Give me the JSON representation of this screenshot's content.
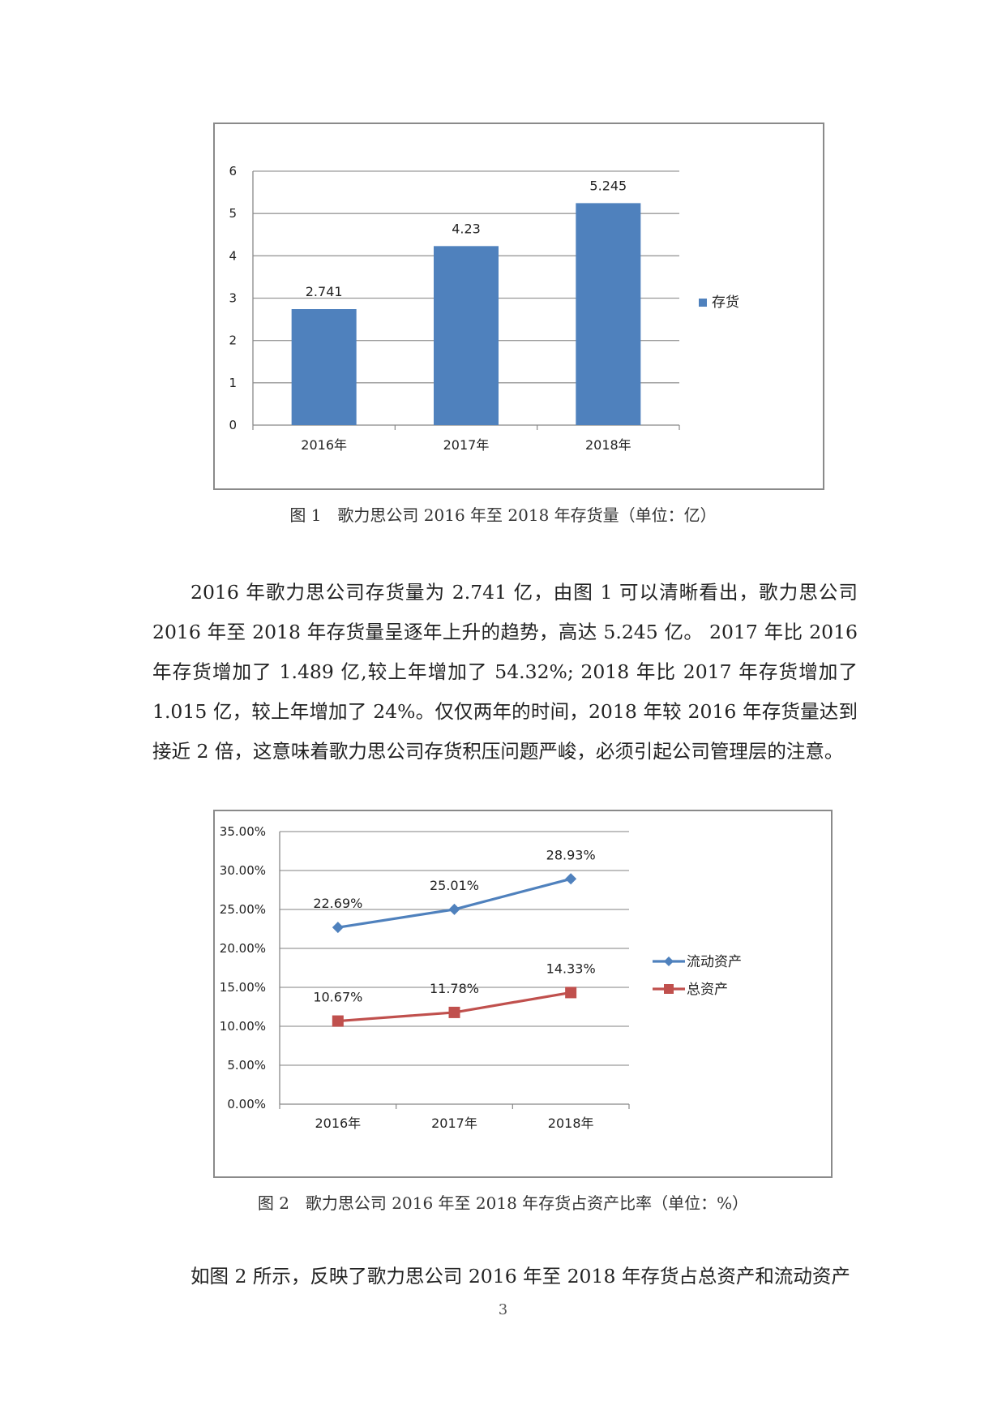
{
  "chart_data": [
    {
      "type": "bar",
      "categories": [
        "2016年",
        "2017年",
        "2018年"
      ],
      "series": [
        {
          "name": "存货",
          "values": [
            2.741,
            4.23,
            5.245
          ],
          "color": "#4F81BD"
        }
      ],
      "data_labels": [
        "2.741",
        "4.23",
        "5.245"
      ],
      "y_ticks": [
        "0",
        "1",
        "2",
        "3",
        "4",
        "5",
        "6"
      ],
      "ylim": [
        0,
        6
      ],
      "grid": true,
      "legend": "right"
    },
    {
      "type": "line",
      "categories": [
        "2016年",
        "2017年",
        "2018年"
      ],
      "series": [
        {
          "name": "流动资产",
          "values": [
            22.69,
            25.01,
            28.93
          ],
          "labels": [
            "22.69%",
            "25.01%",
            "28.93%"
          ],
          "color": "#4F81BD",
          "marker": "diamond"
        },
        {
          "name": "总资产",
          "values": [
            10.67,
            11.78,
            14.33
          ],
          "labels": [
            "10.67%",
            "11.78%",
            "14.33%"
          ],
          "color": "#C0504D",
          "marker": "square"
        }
      ],
      "y_ticks": [
        "0.00%",
        "5.00%",
        "10.00%",
        "15.00%",
        "20.00%",
        "25.00%",
        "30.00%",
        "35.00%"
      ],
      "ylim": [
        0,
        35
      ],
      "grid": true,
      "legend": "right"
    }
  ],
  "captions": {
    "fig1": "图 1　歌力思公司 2016 年至 2018 年存货量（单位：亿）",
    "fig2": "图 2　歌力思公司 2016 年至 2018 年存货占资产比率（单位：%）"
  },
  "paragraphs": {
    "p1": "2016 年歌力思公司存货量为 2.741 亿，由图 1 可以清晰看出，歌力思公司 2016 年至 2018 年存货量呈逐年上升的趋势，高达 5.245 亿。 2017 年比 2016 年存货增加了 1.489 亿,较上年增加了 54.32%; 2018 年比 2017 年存货增加了 1.015 亿，较上年增加了 24%。仅仅两年的时间，2018 年较 2016 年存货量达到接近 2 倍，这意味着歌力思公司存货积压问题严峻，必须引起公司管理层的注意。",
    "p2": "如图 2 所示，反映了歌力思公司 2016 年至 2018 年存货占总资产和流动资产"
  },
  "page_number": "3"
}
